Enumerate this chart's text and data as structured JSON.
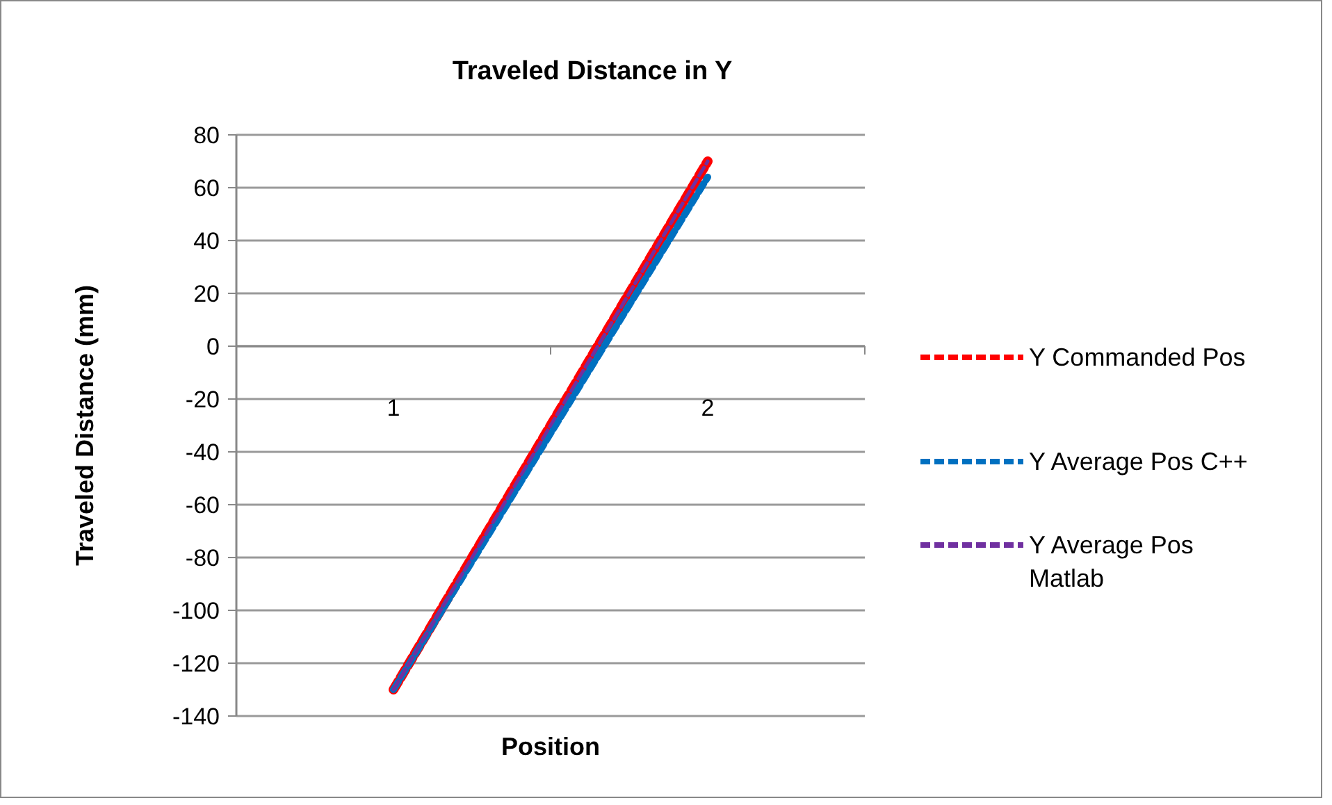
{
  "chart_data": {
    "type": "line",
    "title": "Traveled Distance in Y",
    "xlabel": "Position",
    "ylabel": "Traveled Distance (mm)",
    "categories": [
      "1",
      "2"
    ],
    "series": [
      {
        "name": "Y Commanded Pos",
        "color": "#ff0000",
        "values": [
          -130,
          70
        ],
        "line_style": "dashed"
      },
      {
        "name": "Y Average Pos C++",
        "color": "#0070c0",
        "values": [
          -130,
          64
        ],
        "line_style": "dashed"
      },
      {
        "name": "Y Average Pos Matlab",
        "color": "#7030a0",
        "values": [
          -130,
          70
        ],
        "line_style": "dashed"
      }
    ],
    "ylim": [
      -140,
      80
    ],
    "yticks": [
      -140,
      -120,
      -100,
      -80,
      -60,
      -40,
      -20,
      0,
      20,
      40,
      60,
      80
    ],
    "grid": "y",
    "legend": "right",
    "marker": "none"
  }
}
